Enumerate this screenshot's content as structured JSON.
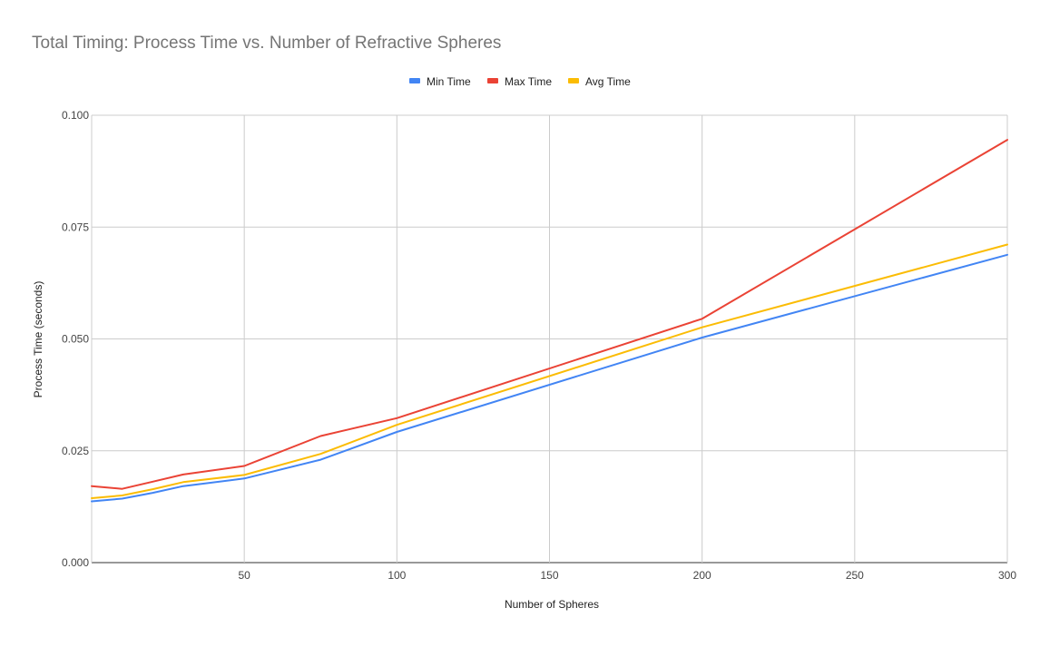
{
  "chart_data": {
    "type": "line",
    "title": "Total Timing: Process Time vs. Number of Refractive Spheres",
    "xlabel": "Number of Spheres",
    "ylabel": "Process Time (seconds)",
    "xlim": [
      0,
      300
    ],
    "ylim": [
      0,
      0.1
    ],
    "x_ticks": [
      50,
      100,
      150,
      200,
      250,
      300
    ],
    "x_tick_labels": [
      "50",
      "100",
      "150",
      "200",
      "250",
      "300"
    ],
    "y_ticks": [
      0,
      0.025,
      0.05,
      0.075,
      0.1
    ],
    "y_tick_labels": [
      "0.000",
      "0.025",
      "0.050",
      "0.075",
      "0.100"
    ],
    "grid": true,
    "legend_position": "top-center",
    "x": [
      0,
      10,
      20,
      30,
      50,
      75,
      100,
      200,
      300
    ],
    "series": [
      {
        "name": "Min Time",
        "color": "#4285f4",
        "values": [
          0.0137,
          0.0143,
          0.0156,
          0.0171,
          0.0188,
          0.023,
          0.0292,
          0.0503,
          0.0688
        ]
      },
      {
        "name": "Max Time",
        "color": "#ea4335",
        "values": [
          0.0171,
          0.0165,
          0.0181,
          0.0197,
          0.0216,
          0.0283,
          0.0323,
          0.0545,
          0.0945
        ]
      },
      {
        "name": "Avg Time",
        "color": "#fbbc04",
        "values": [
          0.0144,
          0.015,
          0.0164,
          0.018,
          0.0196,
          0.0243,
          0.0308,
          0.0526,
          0.0711
        ]
      }
    ]
  }
}
